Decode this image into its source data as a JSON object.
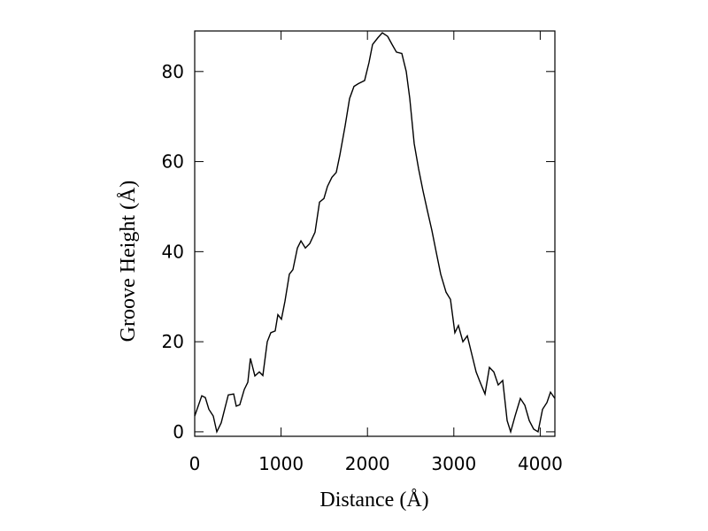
{
  "chart_data": {
    "type": "line",
    "x_label": "Distance (Å)",
    "y_label": "Groove Height (Å)",
    "x": [
      0,
      82,
      123,
      164,
      215,
      256,
      307,
      389,
      451,
      481,
      522,
      574,
      615,
      645,
      697,
      748,
      789,
      840,
      881,
      932,
      963,
      1004,
      1045,
      1096,
      1137,
      1189,
      1230,
      1281,
      1332,
      1393,
      1445,
      1496,
      1537,
      1588,
      1639,
      1680,
      1742,
      1793,
      1844,
      1895,
      1967,
      2018,
      2059,
      2121,
      2172,
      2234,
      2285,
      2336,
      2398,
      2449,
      2490,
      2541,
      2592,
      2643,
      2695,
      2746,
      2797,
      2848,
      2910,
      2961,
      3012,
      3053,
      3105,
      3156,
      3207,
      3258,
      3309,
      3361,
      3412,
      3463,
      3514,
      3566,
      3617,
      3658,
      3709,
      3770,
      3822,
      3873,
      3924,
      3975,
      4027,
      4078,
      4119,
      4170
    ],
    "series": [
      {
        "color": "#000000",
        "values": [
          3.5,
          8,
          7.6,
          5,
          3.5,
          0,
          2,
          8.2,
          8.4,
          5.7,
          6,
          9.4,
          11,
          16.3,
          12.4,
          13.3,
          12.5,
          20,
          22,
          22.4,
          26,
          25,
          29,
          35,
          36,
          40.8,
          42.4,
          40.8,
          41.8,
          44.3,
          51,
          51.8,
          54.5,
          56.5,
          57.6,
          61.4,
          68,
          74,
          76.7,
          77.3,
          78,
          82,
          86,
          87.5,
          88.6,
          87.8,
          86,
          84.3,
          84,
          80,
          74,
          64,
          58.4,
          53.5,
          49,
          44.7,
          39.8,
          35,
          31,
          29.4,
          22,
          23.6,
          20,
          21.3,
          17.3,
          13.3,
          10.8,
          8.4,
          14.3,
          13.3,
          10.4,
          11.4,
          2.5,
          0,
          3.5,
          7.4,
          5.9,
          2.5,
          0.6,
          0,
          5,
          6.5,
          8.8,
          7.4
        ]
      }
    ],
    "xlim": [
      0,
      4170
    ],
    "xticks": [
      0,
      1000,
      2000,
      3000,
      4000
    ],
    "ylim": [
      -1,
      89
    ],
    "yticks": [
      0,
      20,
      40,
      60,
      80
    ]
  }
}
